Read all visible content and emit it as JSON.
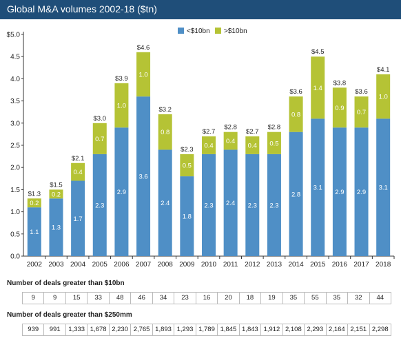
{
  "title": "Global M&A volumes 2002-18 ($tn)",
  "colors": {
    "lower": "#4f8fc6",
    "upper": "#b5c335",
    "header": "#1f4e79"
  },
  "chart_data": {
    "type": "bar",
    "stacked": true,
    "categories": [
      "2002",
      "2003",
      "2004",
      "2005",
      "2006",
      "2007",
      "2008",
      "2009",
      "2010",
      "2011",
      "2012",
      "2013",
      "2014",
      "2015",
      "2016",
      "2017",
      "2018"
    ],
    "series": [
      {
        "name": "<$10bn",
        "values": [
          1.1,
          1.3,
          1.7,
          2.3,
          2.9,
          3.6,
          2.4,
          1.8,
          2.3,
          2.4,
          2.3,
          2.3,
          2.8,
          3.1,
          2.9,
          2.9,
          3.1
        ],
        "labels": [
          "1.1",
          "1.3",
          "1.7",
          "2.3",
          "2.9",
          "3.6",
          "2.4",
          "1.8",
          "2.3",
          "2.4",
          "2.3",
          "2.3",
          "2.8",
          "3.1",
          "2.9",
          "2.9",
          "3.1"
        ]
      },
      {
        "name": ">$10bn",
        "values": [
          0.2,
          0.2,
          0.4,
          0.7,
          1.0,
          1.0,
          0.8,
          0.5,
          0.4,
          0.4,
          0.4,
          0.5,
          0.8,
          1.4,
          0.9,
          0.7,
          1.0
        ],
        "labels": [
          "0.2",
          "0.2",
          "0.4",
          "0.7",
          "1.0",
          "1.0",
          "0.8",
          "0.5",
          "0.4",
          "0.4",
          "0.4",
          "0.5",
          "0.8",
          "1.4",
          "0.9",
          "0.7",
          "1.0"
        ]
      }
    ],
    "totals": [
      "$1.3",
      "$1.5",
      "$2.1",
      "$3.0",
      "$3.9",
      "$4.6",
      "$3.2",
      "$2.3",
      "$2.7",
      "$2.8",
      "$2.7",
      "$2.8",
      "$3.6",
      "$4.5",
      "$3.8",
      "$3.6",
      "$4.1"
    ],
    "y_ticks": [
      "0.0",
      "0.5",
      "1.0",
      "1.5",
      "2.0",
      "2.5",
      "3.0",
      "3.5",
      "4.0",
      "4.5",
      "$5.0"
    ],
    "ylim": [
      0,
      5
    ],
    "legend_placement": "top-center",
    "grid": false
  },
  "tables": [
    {
      "title": "Number of deals greater than $10bn",
      "values": [
        "9",
        "9",
        "15",
        "33",
        "48",
        "46",
        "34",
        "23",
        "16",
        "20",
        "18",
        "19",
        "35",
        "55",
        "35",
        "32",
        "44"
      ]
    },
    {
      "title": "Number of deals greater than $250mm",
      "values": [
        "939",
        "991",
        "1,333",
        "1,678",
        "2,230",
        "2,765",
        "1,893",
        "1,293",
        "1,789",
        "1,845",
        "1,843",
        "1,912",
        "2,108",
        "2,293",
        "2,164",
        "2,151",
        "2,298"
      ]
    }
  ]
}
